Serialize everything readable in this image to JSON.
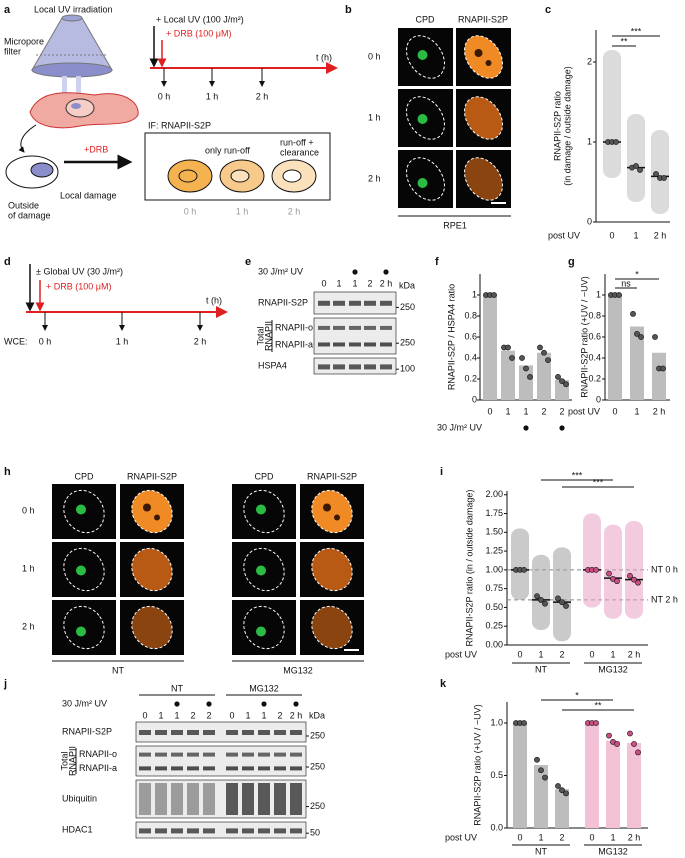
{
  "panel_labels": [
    "a",
    "b",
    "c",
    "d",
    "e",
    "f",
    "g",
    "h",
    "i",
    "j",
    "k"
  ],
  "panel_a": {
    "title": "Local UV irradiation",
    "filter": [
      "Micropore",
      "filter"
    ],
    "uv": "+ Local UV (100 J/m²)",
    "drb": "+ DRB (100 μM)",
    "t": "t (h)",
    "times": [
      "0 h",
      "1 h",
      "2 h"
    ],
    "drb_arrow": "+DRB",
    "outside": [
      "Outside",
      "of damage"
    ],
    "local": "Local damage",
    "if": "IF: RNAPII-S2P",
    "run_off": "only run-off",
    "clearance": [
      "run-off +",
      "clearance"
    ],
    "box_times": [
      "0 h",
      "1 h",
      "2 h"
    ]
  },
  "panel_b": {
    "columns": [
      "CPD",
      "RNAPII-S2P"
    ],
    "rows": [
      "0 h",
      "1 h",
      "2 h"
    ],
    "cell_line": "RPE1"
  },
  "panel_d": {
    "uv": "± Global UV (30 J/m²)",
    "drb": "+ DRB (100 μM)",
    "t": "t (h)",
    "wce": "WCE:",
    "times": [
      "0 h",
      "1 h",
      "2 h"
    ]
  },
  "panel_e": {
    "uv_label": "30 J/m² UV",
    "lanes": [
      "0",
      "1",
      "1",
      "2",
      "2 h"
    ],
    "uv": [
      false,
      false,
      true,
      false,
      true
    ],
    "kda": "kDa",
    "total": [
      "Total",
      "RNAPII"
    ],
    "rows": [
      {
        "label": "RNAPII-S2P",
        "marker": "250"
      },
      {
        "labels": [
          "RNAPII-o",
          "RNAPII-a"
        ],
        "marker": "250"
      },
      {
        "label": "HSPA4",
        "marker": "100"
      }
    ]
  },
  "panel_h": {
    "columns": [
      "CPD",
      "RNAPII-S2P",
      "CPD",
      "RNAPII-S2P"
    ],
    "rows": [
      "0 h",
      "1 h",
      "2 h"
    ],
    "groups": [
      "NT",
      "MG132"
    ]
  },
  "panel_j": {
    "groups": [
      "NT",
      "MG132"
    ],
    "uv_label": "30 J/m² UV",
    "lanes": [
      "0",
      "1",
      "1",
      "2",
      "2",
      "0",
      "1",
      "1",
      "2",
      "2 h"
    ],
    "uv": [
      false,
      false,
      true,
      false,
      true,
      false,
      false,
      true,
      false,
      true
    ],
    "kda": "kDa",
    "total": [
      "Total",
      "RNAPII"
    ],
    "rows": [
      {
        "label": "RNAPII-S2P",
        "marker": "250"
      },
      {
        "labels": [
          "RNAPII-o",
          "RNAPII-a"
        ],
        "marker": "250"
      },
      {
        "label": "Ubiquitin",
        "marker": "250"
      },
      {
        "label": "HDAC1",
        "marker": "50"
      }
    ]
  },
  "chart_data": [
    {
      "type": "swarm",
      "y_label": [
        "RNAPII-S2P ratio",
        "(in damage / outside damage)"
      ],
      "x_label": "post UV",
      "categories": [
        "0",
        "1",
        "2 h"
      ],
      "ylim": [
        0,
        2.4
      ],
      "yticks": [
        0,
        1,
        2
      ],
      "cell_range": [
        [
          0.55,
          2.15
        ],
        [
          0.25,
          1.35
        ],
        [
          0.1,
          1.15
        ]
      ],
      "means": [
        1,
        0.68,
        0.57
      ],
      "replicates": [
        [
          1,
          1,
          1
        ],
        [
          0.68,
          0.7,
          0.65
        ],
        [
          0.6,
          0.55,
          0.55
        ]
      ],
      "color": "#555555",
      "bar_color": "#bdbdbd",
      "significance": [
        {
          "from": 0,
          "to": 1,
          "label": "**"
        },
        {
          "from": 0,
          "to": 2,
          "label": "***"
        }
      ]
    },
    {
      "type": "bar",
      "y_label": "RNAPII-S2P / HSPA4 ratio",
      "categories": [
        "0",
        "1",
        "1",
        "2",
        "2"
      ],
      "uv_label": "30 J/m² UV",
      "uv": [
        false,
        false,
        true,
        false,
        true
      ],
      "values": [
        1,
        0.47,
        0.33,
        0.45,
        0.19
      ],
      "replicates": [
        [
          1,
          1,
          1
        ],
        [
          0.5,
          0.5,
          0.4
        ],
        [
          0.4,
          0.3,
          0.22
        ],
        [
          0.5,
          0.45,
          0.38
        ],
        [
          0.22,
          0.18,
          0.15
        ]
      ],
      "ylim": [
        0,
        1.2
      ],
      "yticks": [
        0,
        0.2,
        0.4,
        0.6,
        0.8,
        1
      ],
      "color": "#555555",
      "bar_color": "#bdbdbd"
    },
    {
      "type": "bar",
      "y_label": "RNAPII-S2P ratio (+UV / −UV)",
      "x_label": "post UV",
      "categories": [
        "0",
        "1",
        "2 h"
      ],
      "values": [
        1,
        0.7,
        0.45
      ],
      "replicates": [
        [
          1,
          1,
          1
        ],
        [
          0.82,
          0.63,
          0.6
        ],
        [
          0.6,
          0.3,
          0.3
        ]
      ],
      "ylim": [
        0,
        1.2
      ],
      "yticks": [
        0,
        0.2,
        0.4,
        0.6,
        0.8,
        1
      ],
      "color": "#555555",
      "bar_color": "#bdbdbd",
      "significance": [
        {
          "from": 0,
          "to": 1,
          "label": "ns"
        },
        {
          "from": 0,
          "to": 2,
          "label": "*"
        }
      ]
    },
    {
      "type": "swarm",
      "y_label": "RNAPII-S2P ratio (in / outside damage)",
      "x_label": "post UV",
      "ylim": [
        0,
        2.05
      ],
      "yticks": [
        {
          "value": 0,
          "label": "0.00"
        },
        {
          "value": 0.25,
          "label": "0.25"
        },
        {
          "value": 0.5,
          "label": "0.50"
        },
        {
          "value": 0.75,
          "label": "0.75"
        },
        {
          "value": 1,
          "label": "1.00"
        },
        {
          "value": 1.25,
          "label": "1.25"
        },
        {
          "value": 1.5,
          "label": "1.50"
        },
        {
          "value": 1.75,
          "label": "1.75"
        },
        {
          "value": 2,
          "label": "2.00"
        }
      ],
      "series": [
        {
          "name": "NT",
          "categories": [
            "0",
            "1",
            "2"
          ],
          "color": "#555555",
          "bar_color": "#9e9e9e",
          "cell_range": [
            [
              0.6,
              1.55
            ],
            [
              0.2,
              1.2
            ],
            [
              0.05,
              1.3
            ]
          ],
          "means": [
            1,
            0.6,
            0.57
          ],
          "replicates": [
            [
              1,
              1,
              1
            ],
            [
              0.65,
              0.6,
              0.55
            ],
            [
              0.62,
              0.57,
              0.52
            ]
          ]
        },
        {
          "name": "MG132",
          "categories": [
            "0",
            "1",
            "2 h"
          ],
          "color": "#c94f86",
          "bar_color": "#e8a3c3",
          "cell_range": [
            [
              0.5,
              1.75
            ],
            [
              0.35,
              1.6
            ],
            [
              0.35,
              1.65
            ]
          ],
          "means": [
            1,
            0.89,
            0.87
          ],
          "replicates": [
            [
              1,
              1,
              1
            ],
            [
              0.95,
              0.88,
              0.85
            ],
            [
              0.92,
              0.87,
              0.83
            ]
          ]
        }
      ],
      "ref_lines": [
        {
          "value": 1,
          "label": "NT 0 h"
        },
        {
          "value": 0.6,
          "label": "NT 2 h"
        }
      ],
      "significance": [
        {
          "from": 1,
          "to": 4,
          "label": "***"
        },
        {
          "from": 2,
          "to": 5,
          "label": "***"
        }
      ]
    },
    {
      "type": "bar",
      "y_label": "RNAPII-S2P ratio (+UV / −UV)",
      "x_label": "post UV",
      "ylim": [
        0,
        1.2
      ],
      "yticks": [
        {
          "value": 0,
          "label": "0.0"
        },
        {
          "value": 0.5,
          "label": "0.5"
        },
        {
          "value": 1,
          "label": "1.0"
        }
      ],
      "series": [
        {
          "name": "NT",
          "categories": [
            "0",
            "1",
            "2"
          ],
          "color": "#555555",
          "bar_color": "#bdbdbd",
          "values": [
            1,
            0.6,
            0.37
          ],
          "replicates": [
            [
              1,
              1,
              1
            ],
            [
              0.65,
              0.55,
              0.48
            ],
            [
              0.4,
              0.36,
              0.33
            ]
          ]
        },
        {
          "name": "MG132",
          "categories": [
            "0",
            "1",
            "2 h"
          ],
          "color": "#c94f86",
          "bar_color": "#f2c1d6",
          "values": [
            1,
            0.83,
            0.81
          ],
          "replicates": [
            [
              1,
              1,
              1
            ],
            [
              0.88,
              0.82,
              0.8
            ],
            [
              0.9,
              0.8,
              0.72
            ]
          ]
        }
      ],
      "significance": [
        {
          "from": 1,
          "to": 4,
          "label": "*"
        },
        {
          "from": 2,
          "to": 5,
          "label": "**"
        }
      ]
    }
  ]
}
